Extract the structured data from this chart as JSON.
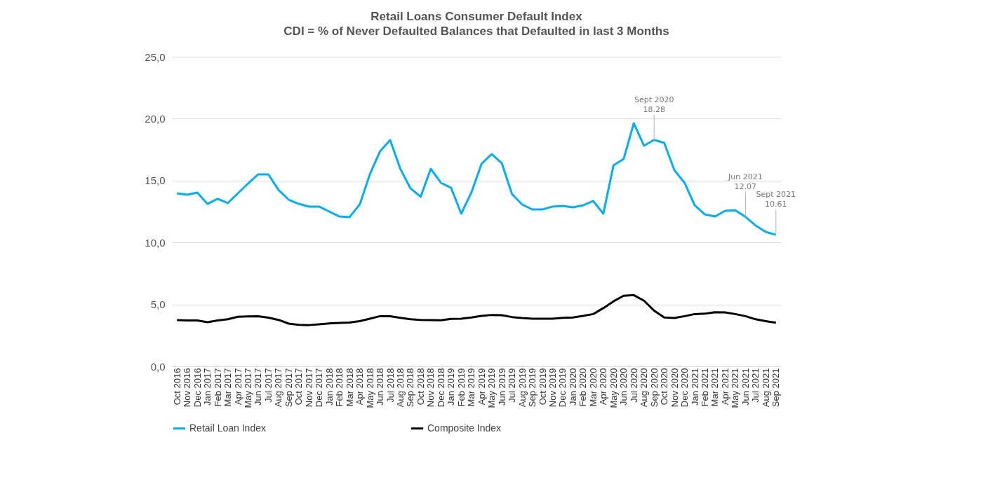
{
  "chart_data": {
    "type": "line",
    "title": "Retail Loans Consumer Default Index",
    "subtitle": "CDI = % of Never Defaulted Balances that Defaulted in last 3 Months",
    "categories": [
      "Oct 2016",
      "Nov 2016",
      "Dec 2016",
      "Jan 2017",
      "Feb 2017",
      "Mar 2017",
      "Apr 2017",
      "May 2017",
      "Jun 2017",
      "Jul 2017",
      "Aug 2017",
      "Sep 2017",
      "Oct 2017",
      "Nov 2017",
      "Dec 2017",
      "Jan 2018",
      "Feb 2018",
      "Mar 2018",
      "Apr 2018",
      "May 2018",
      "Jun 2018",
      "Jul 2018",
      "Aug 2018",
      "Sep 2018",
      "Oct 2018",
      "Nov 2018",
      "Dec 2018",
      "Jan 2019",
      "Feb 2019",
      "Mar 2019",
      "Apr 2019",
      "May 2019",
      "Jun 2019",
      "Jul 2019",
      "Aug 2019",
      "Sep 2019",
      "Oct 2019",
      "Nov 2019",
      "Dec 2019",
      "Jan 2020",
      "Feb 2020",
      "Mar 2020",
      "Apr 2020",
      "May 2020",
      "Jun 2020",
      "Jul 2020",
      "Aug 2020",
      "Sep 2020",
      "Oct 2020",
      "Nov 2020",
      "Dec 2020",
      "Jan 2021",
      "Feb 2021",
      "Mar 2021",
      "Apr 2021",
      "May 2021",
      "Jun 2021",
      "Jul 2021",
      "Aug 2021",
      "Sep 2021"
    ],
    "series": [
      {
        "name": "Retail Loan Index",
        "color": "#00aeef",
        "values": [
          13.97,
          13.86,
          14.03,
          13.12,
          13.52,
          13.18,
          13.97,
          14.76,
          15.5,
          15.5,
          14.25,
          13.46,
          13.12,
          12.9,
          12.9,
          12.5,
          12.1,
          12.05,
          13.07,
          15.5,
          17.36,
          18.27,
          15.95,
          14.37,
          13.69,
          15.95,
          14.82,
          14.42,
          12.33,
          14.03,
          16.35,
          17.14,
          16.4,
          13.91,
          13.07,
          12.67,
          12.67,
          12.9,
          12.95,
          12.84,
          13.0,
          13.35,
          12.33,
          16.23,
          16.74,
          19.63,
          17.82,
          18.28,
          18.04,
          15.84,
          14.82,
          13.0,
          12.27,
          12.1,
          12.56,
          12.6,
          12.07,
          11.37,
          10.86,
          10.61
        ]
      },
      {
        "name": "Composite Index",
        "color": "#000000",
        "values": [
          3.73,
          3.71,
          3.7,
          3.56,
          3.7,
          3.8,
          4.0,
          4.03,
          4.05,
          3.93,
          3.75,
          3.45,
          3.35,
          3.33,
          3.4,
          3.47,
          3.5,
          3.53,
          3.65,
          3.85,
          4.05,
          4.05,
          3.92,
          3.8,
          3.75,
          3.73,
          3.72,
          3.83,
          3.85,
          3.95,
          4.07,
          4.15,
          4.13,
          3.98,
          3.9,
          3.85,
          3.84,
          3.84,
          3.92,
          3.95,
          4.07,
          4.22,
          4.7,
          5.25,
          5.7,
          5.75,
          5.3,
          4.5,
          3.95,
          3.9,
          4.05,
          4.22,
          4.25,
          4.37,
          4.35,
          4.22,
          4.05,
          3.8,
          3.65,
          3.52
        ]
      }
    ],
    "ylim": [
      0,
      25
    ],
    "yticks": [
      {
        "value": 0,
        "label": "0,0"
      },
      {
        "value": 5,
        "label": "5,0"
      },
      {
        "value": 10,
        "label": "10,0"
      },
      {
        "value": 15,
        "label": "15,0"
      },
      {
        "value": 20,
        "label": "20,0"
      },
      {
        "value": 25,
        "label": "25,0"
      }
    ],
    "grid": "y",
    "legend": "bottom",
    "marker": "none",
    "line_style": "solid",
    "annotations": [
      {
        "text": "Sept 2020\n18.28",
        "x": "Sep 2020",
        "y": 18.28
      },
      {
        "text": "Jun 2021\n12.07",
        "x": "Jun 2021",
        "y": 12.07
      },
      {
        "text": "Sept 2021\n10.61",
        "x": "Sep 2021",
        "y": 10.61
      }
    ]
  }
}
